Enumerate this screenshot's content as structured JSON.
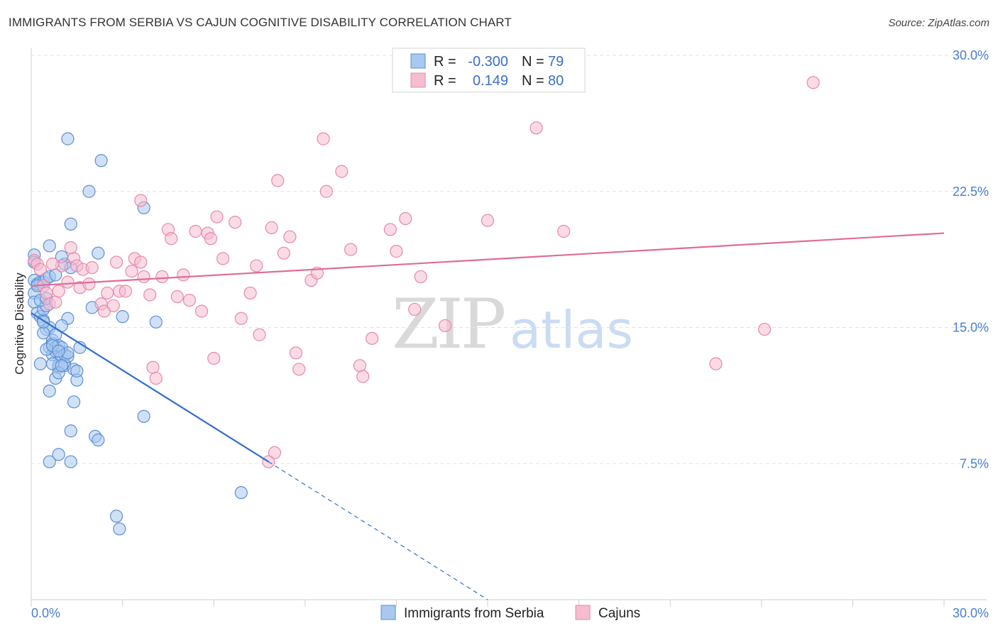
{
  "header": {
    "title": "IMMIGRANTS FROM SERBIA VS CAJUN COGNITIVE DISABILITY CORRELATION CHART",
    "source": "Source: ZipAtlas.com"
  },
  "legend": {
    "rows": [
      {
        "r_label": "R =",
        "r_value": "-0.300",
        "n_label": "N =",
        "n_value": "79"
      },
      {
        "r_label": "R =",
        "r_value": "0.149",
        "n_label": "N =",
        "n_value": "80"
      }
    ]
  },
  "watermark": {
    "zip": "ZIP",
    "atlas": "atlas"
  },
  "colors": {
    "serbia_fill": "#a9c8ef",
    "serbia_stroke": "#5b8fd6",
    "serbia_line": "#2f6fcf",
    "cajun_fill": "#f6bcd0",
    "cajun_stroke": "#e68aa9",
    "cajun_line": "#e06c96",
    "tick_text": "#4a7fd0",
    "grid": "#e3e3e3"
  },
  "chart_data": {
    "type": "scatter",
    "title": "IMMIGRANTS FROM SERBIA VS CAJUN COGNITIVE DISABILITY CORRELATION CHART",
    "xlabel": "",
    "ylabel": "Cognitive Disability",
    "xlim": [
      0,
      30
    ],
    "ylim": [
      0,
      30
    ],
    "x_tick_labels": [
      "0.0%",
      "30.0%"
    ],
    "y_ticks": [
      7.5,
      15.0,
      22.5,
      30.0
    ],
    "y_tick_labels": [
      "7.5%",
      "15.0%",
      "22.5%",
      "30.0%"
    ],
    "grid": "horizontal dashed",
    "legend_position": "top-center",
    "series": [
      {
        "name": "Immigrants from Serbia",
        "r": -0.3,
        "n": 79,
        "trend": {
          "x0": 0.0,
          "y0": 15.8,
          "x1": 7.8,
          "y1": 7.6,
          "dashed_to": [
            15.0,
            0.0
          ]
        },
        "points": [
          [
            0.1,
            19.0
          ],
          [
            0.1,
            18.6
          ],
          [
            0.1,
            17.6
          ],
          [
            0.1,
            16.9
          ],
          [
            0.1,
            16.4
          ],
          [
            0.2,
            15.8
          ],
          [
            0.2,
            17.4
          ],
          [
            0.3,
            17.5
          ],
          [
            0.4,
            17.5
          ],
          [
            0.3,
            15.6
          ],
          [
            0.4,
            15.4
          ],
          [
            0.4,
            16.0
          ],
          [
            0.5,
            16.2
          ],
          [
            0.5,
            17.7
          ],
          [
            0.5,
            14.9
          ],
          [
            0.6,
            17.8
          ],
          [
            0.6,
            15.0
          ],
          [
            0.6,
            13.9
          ],
          [
            0.7,
            14.3
          ],
          [
            0.7,
            14.1
          ],
          [
            0.7,
            13.5
          ],
          [
            0.8,
            13.7
          ],
          [
            0.8,
            14.6
          ],
          [
            0.8,
            13.9
          ],
          [
            0.9,
            14.0
          ],
          [
            0.9,
            12.8
          ],
          [
            0.9,
            12.9
          ],
          [
            1.0,
            13.9
          ],
          [
            1.0,
            13.4
          ],
          [
            1.1,
            13.0
          ],
          [
            1.1,
            12.9
          ],
          [
            1.1,
            13.5
          ],
          [
            1.2,
            13.4
          ],
          [
            1.2,
            13.6
          ],
          [
            1.2,
            15.5
          ],
          [
            1.0,
            15.1
          ],
          [
            0.8,
            12.2
          ],
          [
            0.6,
            11.5
          ],
          [
            0.3,
            13.0
          ],
          [
            0.4,
            14.7
          ],
          [
            0.5,
            13.8
          ],
          [
            0.7,
            13.0
          ],
          [
            0.9,
            12.5
          ],
          [
            1.0,
            12.9
          ],
          [
            1.4,
            12.7
          ],
          [
            1.5,
            12.1
          ],
          [
            1.4,
            10.9
          ],
          [
            1.3,
            9.3
          ],
          [
            1.3,
            7.6
          ],
          [
            0.6,
            7.6
          ],
          [
            0.9,
            8.0
          ],
          [
            2.1,
            9.0
          ],
          [
            2.2,
            8.8
          ],
          [
            2.8,
            4.6
          ],
          [
            2.9,
            3.9
          ],
          [
            6.9,
            5.9
          ],
          [
            3.7,
            10.1
          ],
          [
            3.7,
            21.6
          ],
          [
            1.2,
            25.4
          ],
          [
            2.3,
            24.2
          ],
          [
            1.9,
            22.5
          ],
          [
            1.3,
            20.7
          ],
          [
            2.2,
            19.1
          ],
          [
            0.6,
            19.5
          ],
          [
            1.1,
            18.5
          ],
          [
            1.3,
            18.3
          ],
          [
            0.8,
            17.9
          ],
          [
            2.0,
            16.1
          ],
          [
            3.0,
            15.6
          ],
          [
            4.1,
            15.3
          ],
          [
            1.6,
            13.9
          ],
          [
            1.0,
            18.9
          ],
          [
            0.2,
            17.3
          ],
          [
            0.3,
            16.5
          ],
          [
            0.5,
            16.6
          ],
          [
            0.4,
            15.3
          ],
          [
            0.7,
            14.0
          ],
          [
            1.5,
            12.6
          ],
          [
            0.9,
            13.7
          ]
        ]
      },
      {
        "name": "Cajuns",
        "r": 0.149,
        "n": 80,
        "trend": {
          "x0": 0.0,
          "y0": 17.3,
          "x1": 30.0,
          "y1": 20.2
        },
        "points": [
          [
            0.1,
            18.7
          ],
          [
            0.2,
            18.5
          ],
          [
            0.3,
            18.2
          ],
          [
            0.4,
            17.3
          ],
          [
            0.5,
            16.9
          ],
          [
            0.6,
            16.3
          ],
          [
            0.8,
            16.4
          ],
          [
            0.9,
            17.0
          ],
          [
            1.0,
            18.4
          ],
          [
            1.2,
            17.5
          ],
          [
            1.4,
            18.8
          ],
          [
            1.5,
            18.4
          ],
          [
            1.6,
            17.2
          ],
          [
            1.7,
            18.2
          ],
          [
            1.9,
            17.4
          ],
          [
            2.0,
            18.3
          ],
          [
            2.3,
            16.3
          ],
          [
            2.4,
            15.9
          ],
          [
            2.5,
            16.9
          ],
          [
            2.7,
            16.2
          ],
          [
            2.9,
            17.0
          ],
          [
            3.1,
            17.0
          ],
          [
            3.3,
            18.1
          ],
          [
            3.4,
            18.8
          ],
          [
            3.6,
            18.6
          ],
          [
            3.7,
            17.8
          ],
          [
            3.9,
            16.8
          ],
          [
            4.0,
            12.8
          ],
          [
            4.1,
            12.2
          ],
          [
            4.3,
            17.8
          ],
          [
            4.5,
            20.4
          ],
          [
            4.6,
            19.9
          ],
          [
            4.8,
            16.7
          ],
          [
            5.0,
            17.9
          ],
          [
            5.2,
            16.5
          ],
          [
            5.4,
            20.3
          ],
          [
            5.6,
            15.9
          ],
          [
            5.8,
            20.2
          ],
          [
            5.9,
            19.9
          ],
          [
            6.0,
            13.3
          ],
          [
            6.1,
            21.1
          ],
          [
            6.3,
            18.8
          ],
          [
            6.7,
            20.8
          ],
          [
            6.9,
            15.5
          ],
          [
            7.2,
            16.9
          ],
          [
            7.4,
            18.4
          ],
          [
            7.5,
            14.6
          ],
          [
            7.9,
            20.5
          ],
          [
            8.1,
            23.1
          ],
          [
            8.3,
            19.1
          ],
          [
            8.5,
            20.0
          ],
          [
            8.7,
            13.6
          ],
          [
            8.8,
            12.7
          ],
          [
            9.2,
            17.6
          ],
          [
            9.4,
            18.0
          ],
          [
            9.6,
            25.4
          ],
          [
            9.7,
            22.5
          ],
          [
            10.2,
            23.6
          ],
          [
            10.5,
            19.3
          ],
          [
            10.8,
            12.9
          ],
          [
            10.9,
            12.3
          ],
          [
            11.2,
            14.4
          ],
          [
            11.8,
            20.4
          ],
          [
            12.0,
            19.2
          ],
          [
            12.3,
            21.0
          ],
          [
            12.6,
            16.0
          ],
          [
            12.8,
            17.8
          ],
          [
            13.6,
            15.1
          ],
          [
            15.0,
            20.9
          ],
          [
            16.6,
            26.0
          ],
          [
            17.5,
            20.3
          ],
          [
            22.5,
            13.0
          ],
          [
            24.1,
            14.9
          ],
          [
            25.7,
            28.5
          ],
          [
            8.0,
            8.1
          ],
          [
            7.8,
            7.6
          ],
          [
            3.6,
            22.0
          ],
          [
            2.8,
            18.6
          ],
          [
            1.3,
            19.4
          ],
          [
            0.7,
            18.5
          ]
        ]
      }
    ]
  }
}
